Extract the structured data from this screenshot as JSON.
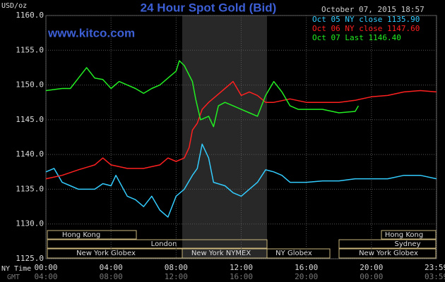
{
  "chart_data": {
    "type": "line",
    "title": "24 Hour Spot Gold (Bid)",
    "unit": "USD/oz",
    "source": "www.kitco.com",
    "timestamp": "October 07, 2015 18:57",
    "xlabel": "NY Time",
    "x2label": "GMT",
    "xlim": [
      0,
      24
    ],
    "ylim": [
      1125,
      1160
    ],
    "grid": true,
    "yticks": [
      {
        "value": 1125,
        "label": "1125.0"
      },
      {
        "value": 1130,
        "label": "1130.0"
      },
      {
        "value": 1135,
        "label": "1135.0"
      },
      {
        "value": 1140,
        "label": "1140.0"
      },
      {
        "value": 1145,
        "label": "1145.0"
      },
      {
        "value": 1150,
        "label": "1150.0"
      },
      {
        "value": 1155,
        "label": "1155.0"
      },
      {
        "value": 1160,
        "label": "1160.0"
      }
    ],
    "xticks": [
      {
        "value": 0,
        "label": "00:00"
      },
      {
        "value": 4,
        "label": "04:00"
      },
      {
        "value": 8,
        "label": "08:00"
      },
      {
        "value": 12,
        "label": "12:00"
      },
      {
        "value": 16,
        "label": "16:00"
      },
      {
        "value": 20,
        "label": "20:00"
      },
      {
        "value": 23.98,
        "label": "23:59"
      }
    ],
    "x2ticklabels": [
      "04:00",
      "08:00",
      "12:00",
      "16:00",
      "20:00",
      "00:00",
      "03:59"
    ],
    "series": [
      {
        "name": "Oct 05 NY close 1135.90",
        "color": "#33ccff",
        "x": [
          0,
          0.5,
          1,
          1.5,
          2,
          3,
          3.5,
          4,
          4.3,
          5,
          5.5,
          6,
          6.5,
          7,
          7.5,
          8,
          8.5,
          9,
          9.3,
          9.6,
          10,
          10.3,
          11,
          11.5,
          12,
          12.5,
          13,
          13.5,
          14,
          14.5,
          15,
          16,
          17,
          18,
          19,
          20,
          21,
          22,
          23,
          24
        ],
        "values": [
          1137.5,
          1138,
          1136,
          1135.5,
          1135,
          1135,
          1135.8,
          1135.5,
          1137,
          1134,
          1133.5,
          1132.5,
          1134,
          1132,
          1131,
          1134,
          1135,
          1137,
          1138,
          1141.5,
          1139.5,
          1136,
          1135.5,
          1134.5,
          1134,
          1135,
          1136,
          1137.8,
          1137.5,
          1137,
          1136,
          1136,
          1136.2,
          1136.2,
          1136.5,
          1136.5,
          1136.5,
          1137,
          1137,
          1136.5
        ]
      },
      {
        "name": "Oct 06 NY close 1147.60",
        "color": "#ff2020",
        "x": [
          0,
          1,
          2,
          3,
          3.5,
          4,
          5,
          6,
          7,
          7.5,
          8,
          8.5,
          8.8,
          9,
          9.3,
          9.6,
          10,
          10.5,
          11,
          11.5,
          12,
          12.5,
          13,
          13.5,
          14,
          15,
          16,
          17,
          18,
          19,
          20,
          21,
          22,
          23,
          24
        ],
        "values": [
          1136.5,
          1137,
          1137.8,
          1138.5,
          1139.5,
          1138.5,
          1138,
          1138,
          1138.5,
          1139.5,
          1139,
          1139.5,
          1141,
          1143.5,
          1144.5,
          1146.5,
          1147.5,
          1148.5,
          1149.5,
          1150.5,
          1148.5,
          1149,
          1148.5,
          1147.5,
          1147.5,
          1148,
          1147.5,
          1147.5,
          1147.5,
          1147.8,
          1148.3,
          1148.5,
          1149,
          1149.2,
          1149
        ]
      },
      {
        "name": "Oct 07 Last 1146.40",
        "color": "#22ee22",
        "x": [
          0,
          1,
          1.5,
          2,
          2.5,
          3,
          3.5,
          4,
          4.5,
          5,
          5.5,
          6,
          6.5,
          7,
          7.5,
          8,
          8.2,
          8.5,
          9,
          9.2,
          9.5,
          10,
          10.3,
          10.6,
          11,
          11.5,
          12,
          12.5,
          13,
          13.5,
          14,
          14.5,
          15,
          15.5,
          16,
          17,
          18,
          19,
          19.2
        ],
        "values": [
          1149.2,
          1149.5,
          1149.5,
          1151,
          1152.5,
          1151,
          1150.8,
          1149.5,
          1150.5,
          1150,
          1149.5,
          1148.8,
          1149.5,
          1150,
          1151,
          1152,
          1153.5,
          1152.8,
          1150.5,
          1148,
          1145,
          1145.5,
          1144,
          1147,
          1147.5,
          1147,
          1146.5,
          1146,
          1145.5,
          1148.5,
          1150.5,
          1149,
          1147,
          1146.5,
          1146.5,
          1146.5,
          1146,
          1146.2,
          1147
        ]
      }
    ]
  },
  "sessions": [
    "Hong Kong",
    "London",
    "New York Globex",
    "New York NYMEX",
    "NY Globex",
    "Sydney",
    "Hong Kong",
    "New York Globex"
  ]
}
